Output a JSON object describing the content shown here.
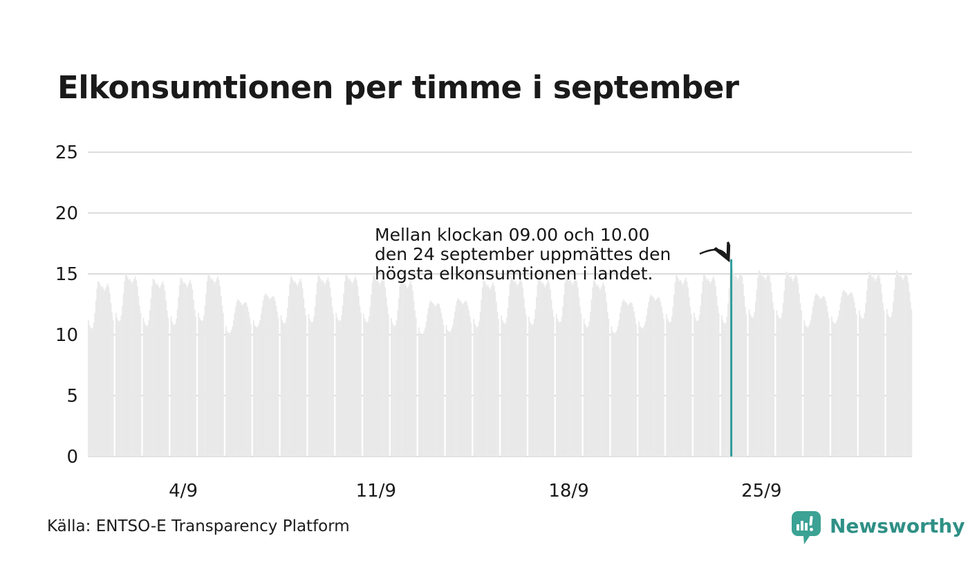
{
  "title": "Elkonsumtionen per timme i september",
  "annotation": {
    "lines": [
      "Mellan klockan 09.00 och 10.00",
      "den 24 september uppmättes den",
      "högsta elkonsumtionen i landet."
    ]
  },
  "source": "Källa: ENTSO-E Transparency Platform",
  "brand": {
    "name": "Newsworthy"
  },
  "colors": {
    "bar": "#e9e9e9",
    "grid": "#dcdcdc",
    "highlight": "#2e9c9c",
    "text": "#1a1a1a",
    "brand_text": "#2f9086",
    "brand_icon": "#3ba294",
    "arrow": "#1a1a1a"
  },
  "chart_data": {
    "type": "bar",
    "title": "Elkonsumtionen per timme i september",
    "x_unit": "hour",
    "x_span": "1/9 – 30/9, 24 hourly bars per day",
    "ylim": [
      0,
      25
    ],
    "yticks": [
      0,
      5,
      10,
      15,
      20,
      25
    ],
    "xticks": [
      {
        "day": 4,
        "label": "4/9"
      },
      {
        "day": 11,
        "label": "11/9"
      },
      {
        "day": 18,
        "label": "18/9"
      },
      {
        "day": 25,
        "label": "25/9"
      }
    ],
    "grid": true,
    "legend": false,
    "highlight": {
      "day": 24,
      "hour": 9,
      "value": 16.2
    },
    "days": [
      {
        "date": "1/9",
        "hourly": [
          11.2,
          10.8,
          10.6,
          10.5,
          10.6,
          11.0,
          11.8,
          12.8,
          13.8,
          14.4,
          14.3,
          14.1,
          13.9,
          14.0,
          13.8,
          13.6,
          13.8,
          14.0,
          14.2,
          13.9,
          13.4,
          12.6,
          11.8,
          11.2
        ]
      },
      {
        "date": "2/9",
        "hourly": [
          11.8,
          11.4,
          11.2,
          11.1,
          11.2,
          11.6,
          12.4,
          13.4,
          14.4,
          15.0,
          14.9,
          14.7,
          14.5,
          14.6,
          14.4,
          14.2,
          14.4,
          14.6,
          14.8,
          14.5,
          14.0,
          13.2,
          12.4,
          11.8
        ]
      },
      {
        "date": "3/9",
        "hourly": [
          11.4,
          11.0,
          10.8,
          10.7,
          10.8,
          11.2,
          12.0,
          13.0,
          14.0,
          14.6,
          14.5,
          14.3,
          14.1,
          14.2,
          14.0,
          13.8,
          14.0,
          14.2,
          14.4,
          14.1,
          13.6,
          12.8,
          12.0,
          11.4
        ]
      },
      {
        "date": "4/9",
        "hourly": [
          11.5,
          11.1,
          10.9,
          10.8,
          10.9,
          11.3,
          12.1,
          13.1,
          14.1,
          14.7,
          14.6,
          14.4,
          14.2,
          14.3,
          14.1,
          13.9,
          14.1,
          14.3,
          14.5,
          14.2,
          13.7,
          12.9,
          12.1,
          11.5
        ]
      },
      {
        "date": "5/9",
        "hourly": [
          11.8,
          11.4,
          11.2,
          11.1,
          11.2,
          11.6,
          12.4,
          13.4,
          14.4,
          15.0,
          14.9,
          14.7,
          14.5,
          14.6,
          14.4,
          14.2,
          14.4,
          14.6,
          14.8,
          14.5,
          14.0,
          13.2,
          12.4,
          11.8
        ]
      },
      {
        "date": "6/9",
        "hourly": [
          10.7,
          10.3,
          10.2,
          10.1,
          10.2,
          10.4,
          10.7,
          11.2,
          11.8,
          12.3,
          12.7,
          12.9,
          12.8,
          12.7,
          12.6,
          12.4,
          12.5,
          12.6,
          12.7,
          12.6,
          12.3,
          11.9,
          11.4,
          10.9
        ]
      },
      {
        "date": "7/9",
        "hourly": [
          11.2,
          10.8,
          10.7,
          10.6,
          10.7,
          10.9,
          11.2,
          11.7,
          12.3,
          12.8,
          13.2,
          13.4,
          13.3,
          13.2,
          13.1,
          12.9,
          13.0,
          13.1,
          13.2,
          13.1,
          12.8,
          12.4,
          11.9,
          11.4
        ]
      },
      {
        "date": "8/9",
        "hourly": [
          11.6,
          11.2,
          11.0,
          10.9,
          11.0,
          11.4,
          12.2,
          13.2,
          14.2,
          14.8,
          14.7,
          14.5,
          14.3,
          14.4,
          14.2,
          14.0,
          14.2,
          14.4,
          14.6,
          14.3,
          13.8,
          13.0,
          12.2,
          11.6
        ]
      },
      {
        "date": "9/9",
        "hourly": [
          11.7,
          11.3,
          11.1,
          11.0,
          11.1,
          11.5,
          12.3,
          13.3,
          14.3,
          14.9,
          14.8,
          14.6,
          14.4,
          14.5,
          14.3,
          14.1,
          14.3,
          14.5,
          14.7,
          14.4,
          13.9,
          13.1,
          12.3,
          11.7
        ]
      },
      {
        "date": "10/9",
        "hourly": [
          11.8,
          11.4,
          11.2,
          11.1,
          11.2,
          11.6,
          12.4,
          13.4,
          14.4,
          15.0,
          14.9,
          14.7,
          14.5,
          14.6,
          14.4,
          14.2,
          14.4,
          14.6,
          14.8,
          14.5,
          14.0,
          13.2,
          12.4,
          11.8
        ]
      },
      {
        "date": "11/9",
        "hourly": [
          11.7,
          11.3,
          11.1,
          11.0,
          11.1,
          11.5,
          12.3,
          13.3,
          14.3,
          14.9,
          14.8,
          14.6,
          14.4,
          14.5,
          14.3,
          14.1,
          14.3,
          14.5,
          14.7,
          14.4,
          13.9,
          13.1,
          12.3,
          11.7
        ]
      },
      {
        "date": "12/9",
        "hourly": [
          11.4,
          11.0,
          10.8,
          10.7,
          10.8,
          11.2,
          12.0,
          13.0,
          14.0,
          14.6,
          14.5,
          14.3,
          14.1,
          14.2,
          14.0,
          13.8,
          14.0,
          14.2,
          14.4,
          14.1,
          13.6,
          12.8,
          12.0,
          11.4
        ]
      },
      {
        "date": "13/9",
        "hourly": [
          10.6,
          10.2,
          10.1,
          10.0,
          10.1,
          10.3,
          10.6,
          11.1,
          11.7,
          12.2,
          12.6,
          12.8,
          12.7,
          12.6,
          12.5,
          12.3,
          12.4,
          12.5,
          12.6,
          12.5,
          12.2,
          11.8,
          11.3,
          10.8
        ]
      },
      {
        "date": "14/9",
        "hourly": [
          10.8,
          10.4,
          10.3,
          10.2,
          10.3,
          10.5,
          10.8,
          11.3,
          11.9,
          12.4,
          12.8,
          13.0,
          12.9,
          12.8,
          12.7,
          12.5,
          12.6,
          12.7,
          12.8,
          12.7,
          12.4,
          12.0,
          11.5,
          11.0
        ]
      },
      {
        "date": "15/9",
        "hourly": [
          11.3,
          10.9,
          10.7,
          10.6,
          10.7,
          11.1,
          11.9,
          12.9,
          13.9,
          14.5,
          14.4,
          14.2,
          14.0,
          14.1,
          13.9,
          13.7,
          13.9,
          14.1,
          14.3,
          14.0,
          13.5,
          12.7,
          11.9,
          11.3
        ]
      },
      {
        "date": "16/9",
        "hourly": [
          11.6,
          11.2,
          11.0,
          10.9,
          11.0,
          11.4,
          12.2,
          13.2,
          14.2,
          14.8,
          14.7,
          14.5,
          14.3,
          14.4,
          14.2,
          14.0,
          14.2,
          14.4,
          14.6,
          14.3,
          13.8,
          13.0,
          12.2,
          11.6
        ]
      },
      {
        "date": "17/9",
        "hourly": [
          11.5,
          11.1,
          10.9,
          10.8,
          10.9,
          11.3,
          12.1,
          13.1,
          14.1,
          14.7,
          14.6,
          14.4,
          14.2,
          14.3,
          14.1,
          13.9,
          14.1,
          14.3,
          14.5,
          14.2,
          13.7,
          12.9,
          12.1,
          11.5
        ]
      },
      {
        "date": "18/9",
        "hourly": [
          11.7,
          11.3,
          11.1,
          11.0,
          11.1,
          11.5,
          12.3,
          13.3,
          14.3,
          14.9,
          14.8,
          14.6,
          14.4,
          14.5,
          14.3,
          14.1,
          14.3,
          14.5,
          14.7,
          14.4,
          13.9,
          13.1,
          12.3,
          11.7
        ]
      },
      {
        "date": "19/9",
        "hourly": [
          11.3,
          10.9,
          10.7,
          10.6,
          10.7,
          11.1,
          11.9,
          12.9,
          13.9,
          14.5,
          14.4,
          14.2,
          14.0,
          14.1,
          13.9,
          13.7,
          13.9,
          14.1,
          14.3,
          14.0,
          13.5,
          12.7,
          11.9,
          11.3
        ]
      },
      {
        "date": "20/9",
        "hourly": [
          10.7,
          10.3,
          10.2,
          10.1,
          10.2,
          10.4,
          10.7,
          11.2,
          11.8,
          12.3,
          12.7,
          12.9,
          12.8,
          12.7,
          12.6,
          12.4,
          12.5,
          12.6,
          12.7,
          12.6,
          12.3,
          11.9,
          11.4,
          10.9
        ]
      },
      {
        "date": "21/9",
        "hourly": [
          11.1,
          10.7,
          10.6,
          10.5,
          10.6,
          10.8,
          11.1,
          11.6,
          12.2,
          12.7,
          13.1,
          13.3,
          13.2,
          13.1,
          13.0,
          12.8,
          12.9,
          13.0,
          13.1,
          13.0,
          12.7,
          12.3,
          11.8,
          11.3
        ]
      },
      {
        "date": "22/9",
        "hourly": [
          11.7,
          11.3,
          11.1,
          11.0,
          11.1,
          11.5,
          12.3,
          13.3,
          14.3,
          14.9,
          14.8,
          14.6,
          14.4,
          14.5,
          14.3,
          14.1,
          14.3,
          14.5,
          14.7,
          14.4,
          13.9,
          13.1,
          12.3,
          11.7
        ]
      },
      {
        "date": "23/9",
        "hourly": [
          11.8,
          11.4,
          11.2,
          11.1,
          11.2,
          11.6,
          12.4,
          13.4,
          14.4,
          15.0,
          14.9,
          14.7,
          14.5,
          14.6,
          14.4,
          14.2,
          14.4,
          14.6,
          14.8,
          14.5,
          14.0,
          13.2,
          12.4,
          11.8
        ]
      },
      {
        "date": "24/9",
        "hourly": [
          11.6,
          11.2,
          11.0,
          10.9,
          11.0,
          11.5,
          12.6,
          13.8,
          15.0,
          16.2,
          15.4,
          15.0,
          14.8,
          14.9,
          14.7,
          14.5,
          14.7,
          15.0,
          15.1,
          14.8,
          14.2,
          13.2,
          12.3,
          11.7
        ]
      },
      {
        "date": "25/9",
        "hourly": [
          12.1,
          11.7,
          11.5,
          11.4,
          11.5,
          11.9,
          12.7,
          13.7,
          14.7,
          15.3,
          15.2,
          15.0,
          14.8,
          14.9,
          14.7,
          14.5,
          14.7,
          14.9,
          15.1,
          14.8,
          14.3,
          13.5,
          12.7,
          12.1
        ]
      },
      {
        "date": "26/9",
        "hourly": [
          12.0,
          11.6,
          11.4,
          11.3,
          11.4,
          11.8,
          12.6,
          13.6,
          14.6,
          15.2,
          15.1,
          14.9,
          14.7,
          14.8,
          14.6,
          14.4,
          14.6,
          14.8,
          15.0,
          14.7,
          14.2,
          13.4,
          12.6,
          12.0
        ]
      },
      {
        "date": "27/9",
        "hourly": [
          11.2,
          10.8,
          10.7,
          10.6,
          10.7,
          10.9,
          11.2,
          11.7,
          12.3,
          12.8,
          13.2,
          13.4,
          13.3,
          13.2,
          13.1,
          12.9,
          13.0,
          13.1,
          13.2,
          13.1,
          12.8,
          12.4,
          11.9,
          11.4
        ]
      },
      {
        "date": "28/9",
        "hourly": [
          11.5,
          11.1,
          11.0,
          10.9,
          11.0,
          11.2,
          11.5,
          12.0,
          12.6,
          13.1,
          13.5,
          13.7,
          13.6,
          13.5,
          13.4,
          13.2,
          13.3,
          13.4,
          13.5,
          13.4,
          13.1,
          12.7,
          12.2,
          11.7
        ]
      },
      {
        "date": "29/9",
        "hourly": [
          12.0,
          11.6,
          11.4,
          11.3,
          11.4,
          11.8,
          12.6,
          13.6,
          14.6,
          15.2,
          15.1,
          14.9,
          14.7,
          14.8,
          14.6,
          14.4,
          14.6,
          14.8,
          15.0,
          14.7,
          14.2,
          13.4,
          12.6,
          12.0
        ]
      },
      {
        "date": "30/9",
        "hourly": [
          12.1,
          11.7,
          11.5,
          11.4,
          11.5,
          11.9,
          12.7,
          13.7,
          14.7,
          15.3,
          15.2,
          15.0,
          14.8,
          14.9,
          14.7,
          14.5,
          14.7,
          14.9,
          15.1,
          14.8,
          14.3,
          13.5,
          12.7,
          12.1
        ]
      }
    ]
  }
}
